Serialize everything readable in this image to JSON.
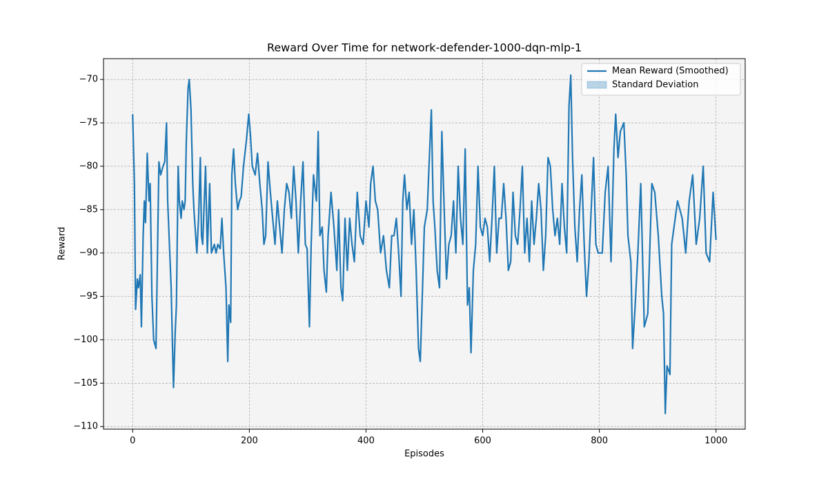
{
  "chart_data": {
    "type": "line",
    "title": "Reward Over Time for network-defender-1000-dqn-mlp-1",
    "xlabel": "Episodes",
    "ylabel": "Reward",
    "x": [
      0,
      3,
      5,
      8,
      10,
      13,
      15,
      18,
      20,
      22,
      25,
      28,
      30,
      33,
      36,
      40,
      42,
      45,
      48,
      52,
      55,
      58,
      60,
      63,
      66,
      68,
      70,
      73,
      75,
      78,
      80,
      83,
      85,
      88,
      90,
      92,
      95,
      97,
      100,
      103,
      105,
      108,
      110,
      113,
      116,
      118,
      120,
      125,
      128,
      132,
      135,
      140,
      143,
      146,
      150,
      153,
      156,
      160,
      163,
      165,
      168,
      170,
      173,
      176,
      180,
      183,
      186,
      190,
      195,
      199,
      202,
      205,
      210,
      214,
      218,
      222,
      225,
      228,
      232,
      236,
      240,
      244,
      248,
      252,
      256,
      260,
      264,
      268,
      272,
      276,
      280,
      284,
      288,
      292,
      296,
      299,
      303,
      306,
      310,
      315,
      318,
      321,
      325,
      328,
      332,
      335,
      340,
      345,
      350,
      353,
      357,
      360,
      364,
      368,
      372,
      376,
      380,
      385,
      390,
      395,
      400,
      405,
      408,
      412,
      416,
      420,
      425,
      430,
      435,
      440,
      444,
      448,
      452,
      456,
      460,
      463,
      466,
      470,
      474,
      478,
      482,
      486,
      490,
      493,
      496,
      500,
      505,
      508,
      512,
      515,
      518,
      522,
      526,
      530,
      534,
      538,
      542,
      546,
      550,
      554,
      558,
      562,
      566,
      570,
      574,
      577,
      580,
      584,
      588,
      592,
      596,
      600,
      604,
      608,
      612,
      616,
      620,
      624,
      628,
      632,
      636,
      640,
      644,
      648,
      652,
      656,
      660,
      664,
      668,
      672,
      676,
      680,
      684,
      688,
      692,
      696,
      700,
      704,
      708,
      712,
      716,
      720,
      724,
      728,
      732,
      736,
      740,
      744,
      748,
      751,
      754,
      758,
      762,
      766,
      770,
      774,
      778,
      782,
      786,
      790,
      794,
      798,
      805,
      810,
      815,
      820,
      825,
      828,
      832,
      836,
      842,
      846,
      849,
      854,
      857,
      861,
      866,
      871,
      877,
      883,
      890,
      895,
      901,
      907,
      910,
      913,
      916,
      921,
      924,
      930,
      934,
      942,
      948,
      954,
      960,
      966,
      972,
      978,
      983,
      989,
      995,
      1000
    ],
    "series": [
      {
        "name": "Mean Reward (Smoothed)",
        "color": "#1f77b4",
        "values": [
          -74,
          -82,
          -96.5,
          -93,
          -94,
          -92.5,
          -98.5,
          -88,
          -84,
          -86.5,
          -78.5,
          -84,
          -82,
          -95,
          -100,
          -101,
          -92.5,
          -79.5,
          -81,
          -80,
          -79.5,
          -75,
          -84,
          -89,
          -94,
          -100,
          -105.5,
          -99,
          -96,
          -80,
          -84,
          -86,
          -84,
          -85,
          -84,
          -77,
          -71,
          -70,
          -73.5,
          -82,
          -85,
          -88,
          -90,
          -86,
          -79,
          -88,
          -89,
          -80,
          -90,
          -82,
          -90,
          -89,
          -90,
          -89,
          -89.5,
          -86,
          -90,
          -94,
          -102.5,
          -96,
          -98,
          -81,
          -78,
          -82,
          -85,
          -84,
          -83.5,
          -80,
          -77,
          -74,
          -76.5,
          -80,
          -81,
          -78.5,
          -82,
          -85,
          -89,
          -88,
          -79.5,
          -83,
          -86,
          -89,
          -84,
          -87,
          -90,
          -85,
          -82,
          -83,
          -86,
          -80,
          -84,
          -90,
          -84,
          -79.5,
          -89,
          -89.5,
          -98.5,
          -89,
          -81,
          -84,
          -76,
          -88,
          -87,
          -92,
          -94.5,
          -88,
          -83,
          -87,
          -92,
          -85,
          -94,
          -95.5,
          -86,
          -92,
          -86,
          -89,
          -91,
          -83,
          -88,
          -89,
          -84,
          -87,
          -82,
          -80,
          -84,
          -85,
          -90,
          -88,
          -92,
          -94,
          -88,
          -88,
          -86,
          -90,
          -95,
          -84,
          -81,
          -85,
          -83,
          -89,
          -85,
          -92,
          -101,
          -102.5,
          -96,
          -87,
          -85,
          -80,
          -73.5,
          -84,
          -87,
          -92,
          -94,
          -76,
          -85,
          -93,
          -89,
          -88,
          -84,
          -90,
          -80,
          -86,
          -89,
          -78,
          -96,
          -94,
          -101.5,
          -92,
          -89,
          -80,
          -87,
          -88,
          -86,
          -87,
          -91,
          -86,
          -80,
          -90,
          -86,
          -86,
          -82,
          -86,
          -92,
          -91,
          -83,
          -88,
          -89,
          -85,
          -80,
          -90,
          -86,
          -91,
          -84,
          -89,
          -86,
          -82,
          -85,
          -92,
          -88,
          -79,
          -80,
          -85,
          -88,
          -86,
          -89,
          -82,
          -87,
          -90,
          -73,
          -69.5,
          -79,
          -87,
          -91,
          -85,
          -81,
          -89,
          -95,
          -91,
          -85,
          -79,
          -89,
          -90,
          -90,
          -83,
          -80,
          -91,
          -78,
          -74,
          -79,
          -76,
          -75,
          -81,
          -88,
          -91,
          -101,
          -96.5,
          -90,
          -82,
          -98.5,
          -97,
          -82,
          -83,
          -88,
          -95,
          -97,
          -108.5,
          -103,
          -104,
          -89,
          -86,
          -84,
          -86,
          -90,
          -84,
          -81,
          -89,
          -86,
          -80,
          -90,
          -91,
          -83,
          -88.5
        ]
      },
      {
        "name": "Standard Deviation",
        "color": "#1f77b4",
        "opacity": 0.3
      }
    ],
    "xlim": [
      -50,
      1050
    ],
    "ylim": [
      -110.3,
      -67.6
    ],
    "xticks": [
      0,
      200,
      400,
      600,
      800,
      1000
    ],
    "yticks": [
      {
        "value": -110,
        "label": "−110"
      },
      {
        "value": -105,
        "label": "−105"
      },
      {
        "value": -100,
        "label": "−100"
      },
      {
        "value": -95,
        "label": "−95"
      },
      {
        "value": -90,
        "label": "−90"
      },
      {
        "value": -85,
        "label": "−85"
      },
      {
        "value": -80,
        "label": "−80"
      },
      {
        "value": -75,
        "label": "−75"
      },
      {
        "value": -70,
        "label": "−70"
      }
    ],
    "grid": true,
    "legend": "upper right",
    "background": "#f4f4f4"
  }
}
